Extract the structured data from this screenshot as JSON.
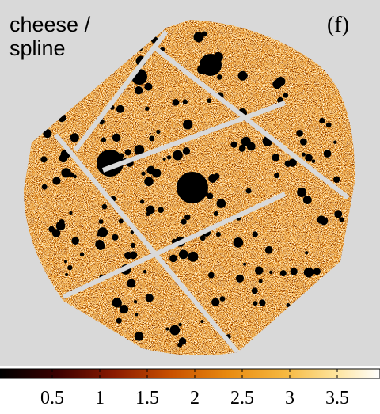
{
  "image": {
    "label_lines": [
      "cheese /",
      "spline"
    ],
    "panel_tag": "(f)"
  },
  "colorbar": {
    "lim": [
      -0.05,
      3.95
    ],
    "ticks": [
      0.5,
      1,
      1.5,
      2,
      2.5,
      3,
      3.5
    ]
  }
}
